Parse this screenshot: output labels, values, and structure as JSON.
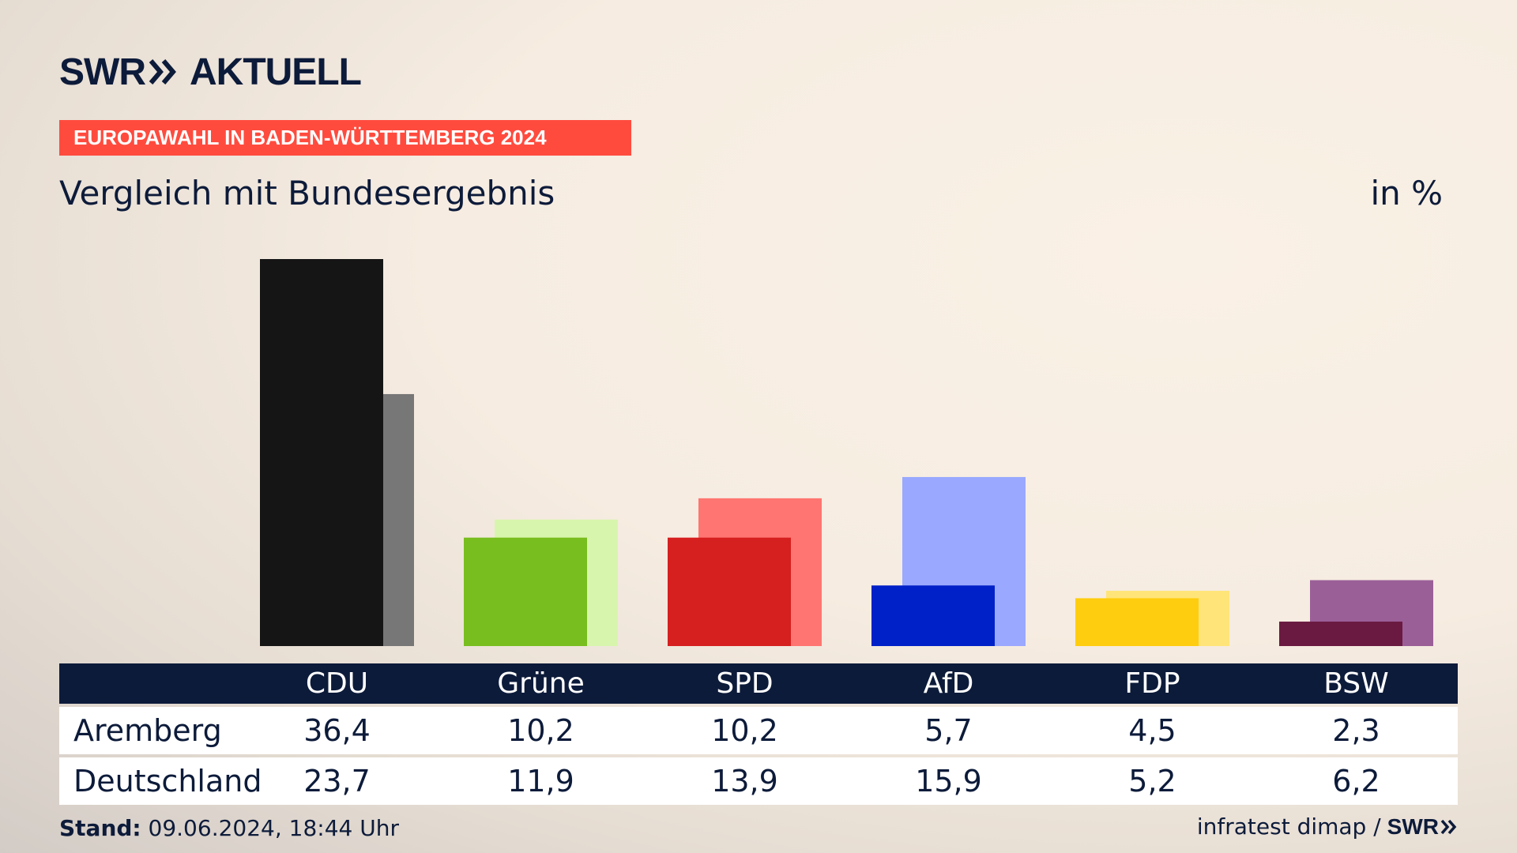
{
  "logo": {
    "text": "SWR",
    "suffix": "AKTUELL"
  },
  "banner": "EUROPAWAHL IN BADEN-WÜRTTEMBERG 2024",
  "subtitle": "Vergleich mit Bundesergebnis",
  "unit": "in %",
  "chart_data": {
    "type": "bar",
    "categories": [
      "CDU",
      "Grüne",
      "SPD",
      "AfD",
      "FDP",
      "BSW"
    ],
    "series": [
      {
        "name": "Aremberg",
        "values": [
          36.4,
          10.2,
          10.2,
          5.7,
          4.5,
          2.3
        ]
      },
      {
        "name": "Deutschland",
        "values": [
          23.7,
          11.9,
          13.9,
          15.9,
          5.2,
          6.2
        ]
      }
    ],
    "ylim": [
      0,
      36.4
    ],
    "colors": {
      "primary": [
        "#151515",
        "#78be1e",
        "#d61f1f",
        "#0020c8",
        "#ffcd0f",
        "#6a1a40"
      ],
      "secondary": [
        "#777777",
        "#d8f5ad",
        "#ff7571",
        "#9aa9ff",
        "#ffe47a",
        "#9b5f98"
      ]
    }
  },
  "table": {
    "headers": [
      "CDU",
      "Grüne",
      "SPD",
      "AfD",
      "FDP",
      "BSW"
    ],
    "rows": [
      {
        "label": "Aremberg",
        "values": [
          "36,4",
          "10,2",
          "10,2",
          "5,7",
          "4,5",
          "2,3"
        ]
      },
      {
        "label": "Deutschland",
        "values": [
          "23,7",
          "11,9",
          "13,9",
          "15,9",
          "5,2",
          "6,2"
        ]
      }
    ]
  },
  "footer": {
    "stand_label": "Stand:",
    "stand_value": "09.06.2024, 18:44 Uhr",
    "source": "infratest dimap /",
    "brand": "SWR"
  },
  "colors": {
    "navy": "#0d1b3a",
    "accent": "#ff4b3e"
  }
}
